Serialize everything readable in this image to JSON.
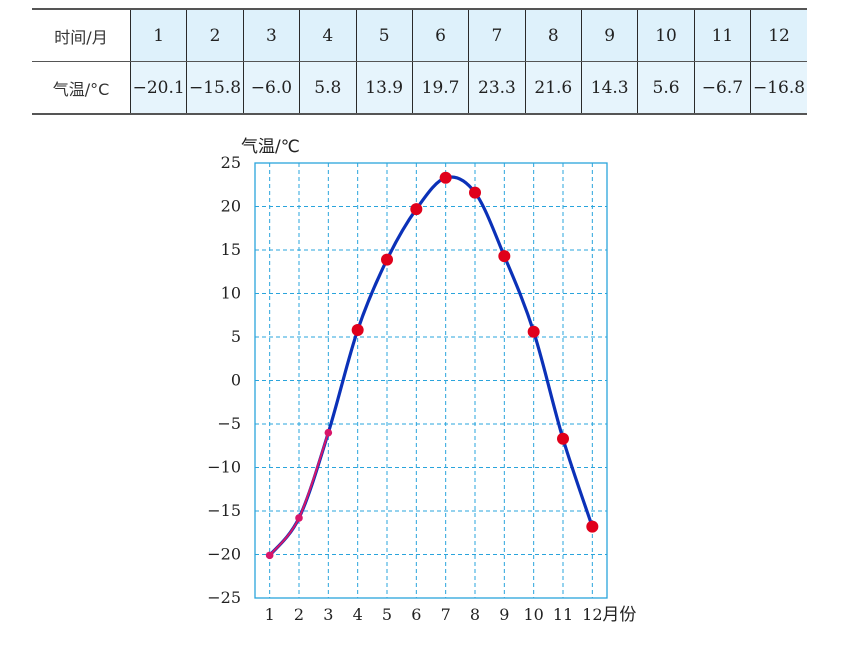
{
  "table": {
    "row1_header": "时间/月",
    "row2_header": "气温/°C",
    "months": [
      "1",
      "2",
      "3",
      "4",
      "5",
      "6",
      "7",
      "8",
      "9",
      "10",
      "11",
      "12"
    ],
    "temps": [
      "−20.1",
      "−15.8",
      "−6.0",
      "5.8",
      "13.9",
      "19.7",
      "23.3",
      "21.6",
      "14.3",
      "5.6",
      "−6.7",
      "−16.8"
    ]
  },
  "chart_data": {
    "type": "scatter",
    "ylabel": "气温/℃",
    "xlabel": "月份",
    "xlim": [
      0.5,
      12.5
    ],
    "ylim": [
      -25,
      25
    ],
    "xticks": [
      "1",
      "2",
      "3",
      "4",
      "5",
      "6",
      "7",
      "8",
      "9",
      "10",
      "11",
      "12"
    ],
    "yticks": [
      "25",
      "20",
      "15",
      "10",
      "5",
      "0",
      "−5",
      "−10",
      "−15",
      "−20",
      "−25"
    ],
    "grid": true,
    "x": [
      1,
      2,
      3,
      4,
      5,
      6,
      7,
      8,
      9,
      10,
      11,
      12
    ],
    "y": [
      -20.1,
      -15.8,
      -6.0,
      5.8,
      13.9,
      19.7,
      23.3,
      21.6,
      14.3,
      5.6,
      -6.7,
      -16.8
    ],
    "fitted_curve": "smooth",
    "colors": {
      "points": "#e0001b",
      "points_early": "#d8166a",
      "curve": "#0b31b8",
      "grid": "#2aa4dc",
      "frame": "#2aa4dc"
    }
  }
}
